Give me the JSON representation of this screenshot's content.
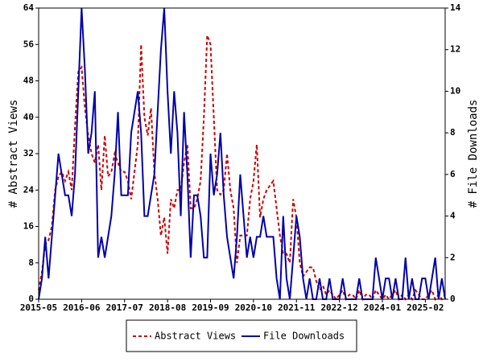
{
  "chart_data": {
    "type": "line",
    "categories": [
      "2015-05",
      null,
      null,
      null,
      null,
      null,
      null,
      null,
      null,
      null,
      null,
      null,
      null,
      "2016-06",
      null,
      null,
      null,
      null,
      null,
      null,
      null,
      null,
      null,
      null,
      null,
      null,
      "2017-07",
      null,
      null,
      null,
      null,
      null,
      null,
      null,
      null,
      null,
      null,
      null,
      null,
      "2018-08",
      null,
      null,
      null,
      null,
      null,
      null,
      null,
      null,
      null,
      null,
      null,
      null,
      "2019-09",
      null,
      null,
      null,
      null,
      null,
      null,
      null,
      null,
      null,
      null,
      null,
      null,
      "2020-10",
      null,
      null,
      null,
      null,
      null,
      null,
      null,
      null,
      null,
      null,
      null,
      null,
      "2021-11",
      null,
      null,
      null,
      null,
      null,
      null,
      null,
      null,
      null,
      null,
      null,
      null,
      "2022-12",
      null,
      null,
      null,
      null,
      null,
      null,
      null,
      null,
      null,
      null,
      null,
      null,
      "2024-01",
      null,
      null,
      null,
      null,
      null,
      null,
      null,
      null,
      null,
      null,
      null,
      null,
      "2025-02",
      null,
      null,
      null,
      null,
      null,
      null
    ],
    "series": [
      {
        "name": "Abstract Views",
        "color": "#cc0000",
        "dash": true,
        "axis": "y",
        "values": [
          2,
          6,
          12,
          13,
          16,
          24,
          27,
          28,
          26,
          28,
          24,
          38,
          50,
          51,
          42,
          36,
          32,
          30,
          34,
          24,
          36,
          27,
          28,
          32,
          30,
          28,
          28,
          26,
          22,
          28,
          34,
          56,
          40,
          36,
          42,
          28,
          22,
          14,
          18,
          10,
          22,
          20,
          24,
          24,
          30,
          34,
          20,
          20,
          22,
          26,
          40,
          58,
          56,
          40,
          24,
          23,
          24,
          32,
          24,
          20,
          8,
          14,
          14,
          14,
          22,
          26,
          34,
          18,
          22,
          24,
          25,
          26,
          20,
          14,
          10,
          10,
          8,
          22,
          18,
          8,
          5,
          6,
          7,
          7,
          4,
          2,
          3,
          1,
          2,
          1,
          0,
          1,
          2,
          0,
          1,
          1,
          0,
          2,
          0,
          1,
          1,
          0,
          2,
          1,
          0,
          1,
          0,
          1,
          2,
          0,
          1,
          0,
          1,
          0,
          2,
          1,
          0,
          0,
          1,
          2,
          0,
          1,
          0,
          1
        ]
      },
      {
        "name": "File Downloads",
        "color": "#0000aa",
        "dash": false,
        "axis": "y2",
        "values": [
          0,
          1,
          3,
          1,
          3,
          5,
          7,
          6,
          5,
          5,
          4,
          6,
          10,
          14,
          11,
          7,
          8,
          10,
          2,
          3,
          2,
          3,
          4,
          6,
          9,
          5,
          5,
          5,
          8,
          9,
          10,
          8,
          4,
          4,
          5,
          6,
          9,
          12,
          14,
          10,
          7,
          10,
          8,
          4,
          9,
          6,
          2,
          5,
          5,
          4,
          2,
          2,
          7,
          5,
          6,
          8,
          5,
          3,
          2,
          1,
          3,
          6,
          4,
          2,
          3,
          2,
          3,
          3,
          4,
          3,
          3,
          3,
          1,
          0,
          4,
          1,
          0,
          2,
          4,
          3,
          1,
          0,
          1,
          0,
          0,
          1,
          0,
          0,
          1,
          0,
          0,
          0,
          1,
          0,
          0,
          0,
          0,
          1,
          0,
          0,
          0,
          0,
          2,
          1,
          0,
          1,
          1,
          0,
          1,
          0,
          0,
          2,
          0,
          1,
          0,
          0,
          1,
          1,
          0,
          1,
          2,
          0,
          1,
          0
        ]
      }
    ],
    "ylabel": "# Abstract Views",
    "y2label": "# File Downloads",
    "ylim": [
      0,
      64
    ],
    "yticks": [
      0,
      8,
      16,
      24,
      32,
      40,
      48,
      56,
      64
    ],
    "y2lim": [
      0,
      14
    ],
    "y2ticks": [
      0,
      2,
      4,
      6,
      8,
      10,
      12,
      14
    ],
    "legend": "bottom",
    "grid": false
  }
}
